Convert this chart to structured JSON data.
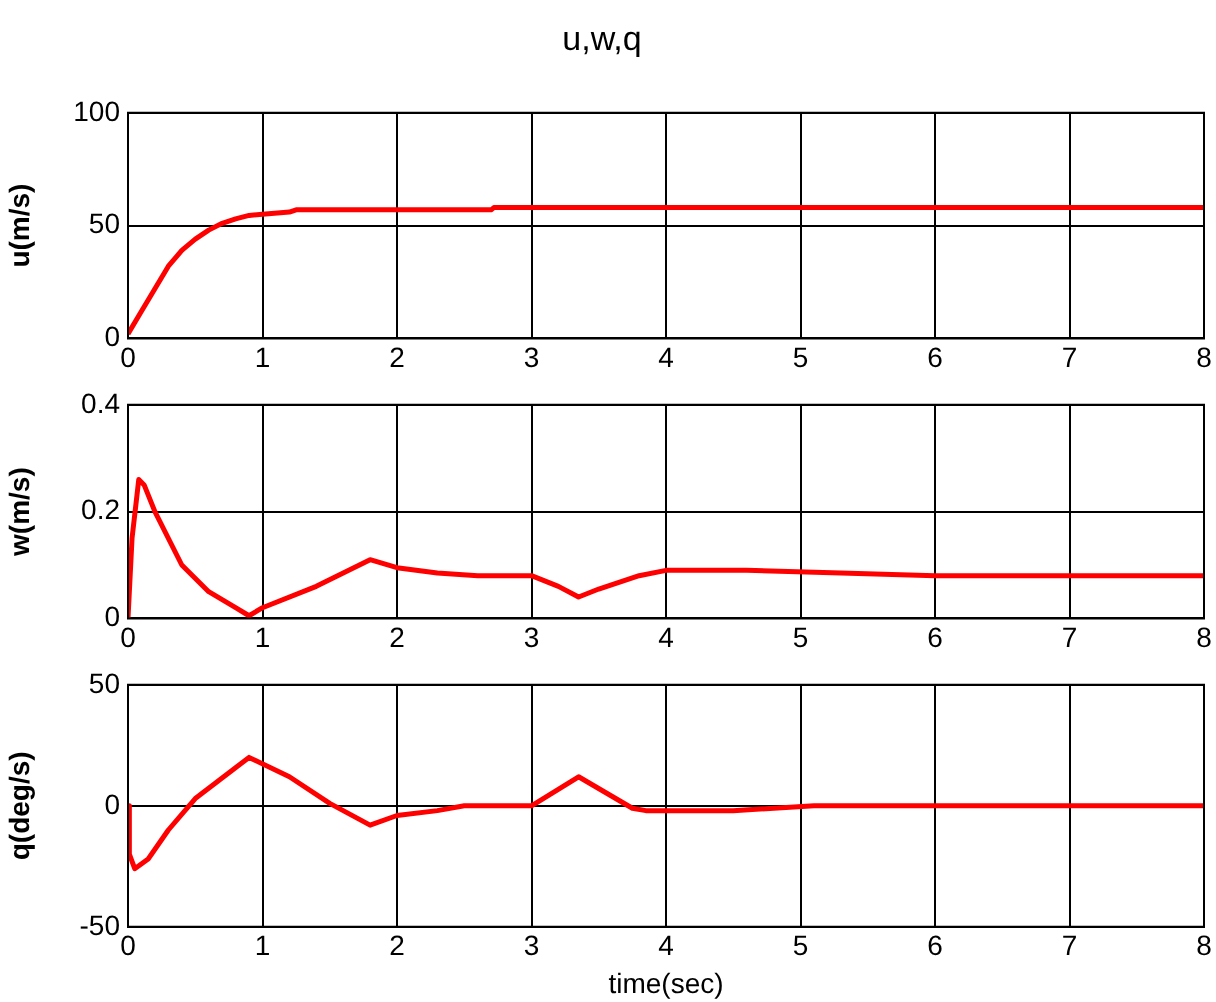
{
  "chart_data": [
    {
      "type": "line",
      "title": "u,w,q",
      "ylabel": "u(m/s)",
      "xlim": [
        0,
        8
      ],
      "xticks": [
        0,
        1,
        2,
        3,
        4,
        5,
        6,
        7,
        8
      ],
      "ylim": [
        0,
        100
      ],
      "yticks": [
        0,
        50,
        100
      ],
      "grid": true,
      "legend": false,
      "marker": "none",
      "series": [
        {
          "color": "#ff0000",
          "x": [
            0,
            0.1,
            0.2,
            0.3,
            0.4,
            0.5,
            0.6,
            0.7,
            0.8,
            0.9,
            1.0,
            1.2,
            1.25,
            2,
            2.7,
            2.72,
            4,
            8
          ],
          "values": [
            2,
            12,
            22,
            32,
            39,
            44,
            48,
            51,
            53,
            54.5,
            55,
            56,
            57,
            57,
            57,
            58,
            58,
            58
          ]
        }
      ]
    },
    {
      "type": "line",
      "ylabel": "w(m/s)",
      "xlim": [
        0,
        8
      ],
      "xticks": [
        0,
        1,
        2,
        3,
        4,
        5,
        6,
        7,
        8
      ],
      "ylim": [
        0,
        0.4
      ],
      "yticks": [
        0,
        0.2,
        0.4
      ],
      "grid": true,
      "legend": false,
      "marker": "none",
      "series": [
        {
          "color": "#ff0000",
          "x": [
            0,
            0.03,
            0.08,
            0.12,
            0.2,
            0.4,
            0.6,
            0.8,
            0.9,
            1.0,
            1.4,
            1.8,
            2,
            2.3,
            2.6,
            3,
            3.2,
            3.35,
            3.5,
            3.8,
            4,
            4.6,
            5.3,
            6,
            8
          ],
          "values": [
            0,
            0.15,
            0.26,
            0.25,
            0.2,
            0.1,
            0.05,
            0.02,
            0.005,
            0.02,
            0.06,
            0.11,
            0.095,
            0.085,
            0.08,
            0.08,
            0.06,
            0.04,
            0.055,
            0.08,
            0.09,
            0.09,
            0.085,
            0.08,
            0.08
          ]
        }
      ]
    },
    {
      "type": "line",
      "xlabel": "time(sec)",
      "ylabel": "q(deg/s)",
      "xlim": [
        0,
        8
      ],
      "xticks": [
        0,
        1,
        2,
        3,
        4,
        5,
        6,
        7,
        8
      ],
      "ylim": [
        -50,
        50
      ],
      "yticks": [
        -50,
        0,
        50
      ],
      "grid": true,
      "legend": false,
      "marker": "none",
      "series": [
        {
          "color": "#ff0000",
          "x": [
            0,
            0.01,
            0.05,
            0.15,
            0.3,
            0.5,
            0.9,
            1.2,
            1.5,
            1.8,
            2,
            2.3,
            2.5,
            3,
            3.35,
            3.75,
            3.85,
            4.5,
            5.1,
            8
          ],
          "values": [
            0,
            -20,
            -26,
            -22,
            -10,
            3,
            20,
            12,
            1,
            -8,
            -4,
            -2,
            0,
            0,
            12,
            -1,
            -2,
            -2,
            0,
            0
          ]
        }
      ]
    }
  ]
}
